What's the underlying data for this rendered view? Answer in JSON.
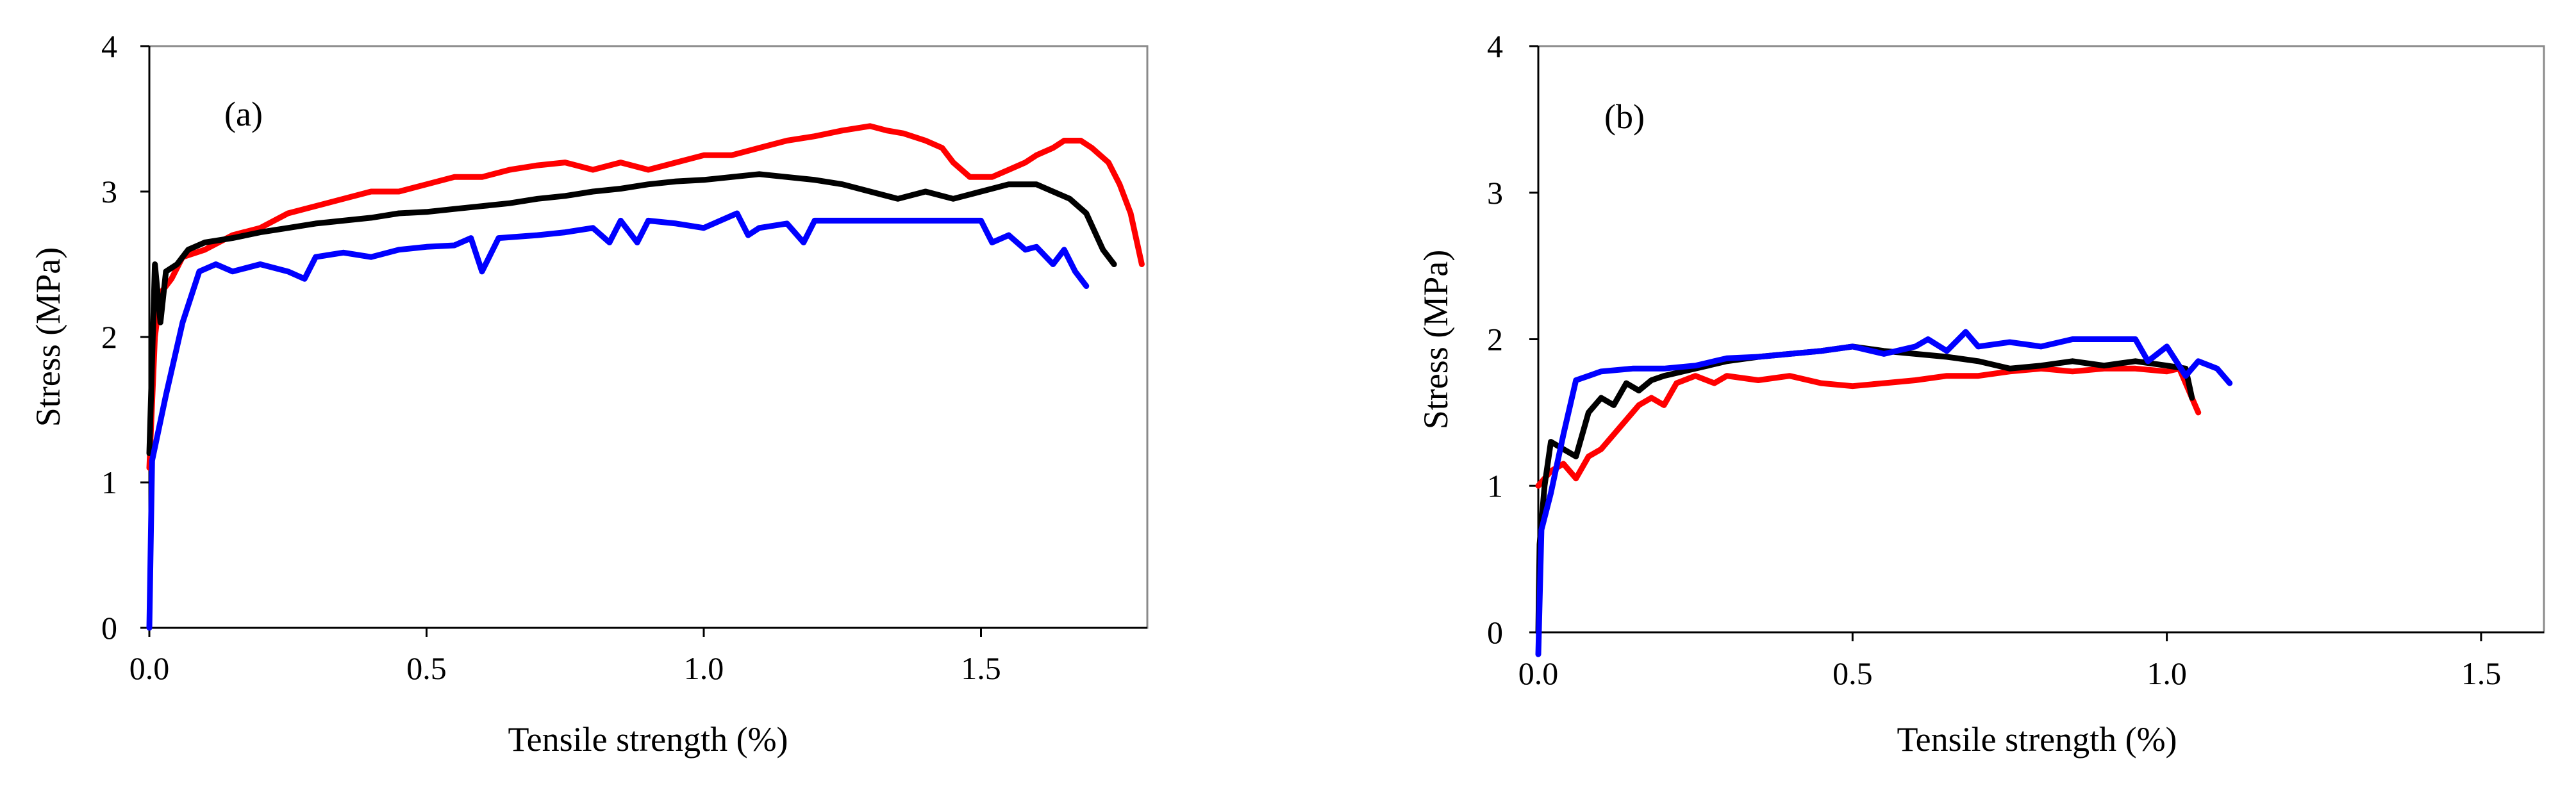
{
  "chart_data": [
    {
      "type": "line",
      "panel_label": "(a)",
      "xlabel": "Tensile strength (%)",
      "ylabel": "Stress (MPa)",
      "xlim": [
        0,
        1.8
      ],
      "ylim": [
        0,
        4
      ],
      "x_ticks": [
        0,
        0.5,
        1.0,
        1.5
      ],
      "x_tick_labels": [
        "0.0",
        "0.5",
        "1.0",
        "1.5"
      ],
      "y_ticks": [
        0,
        1,
        2,
        3,
        4
      ],
      "y_tick_labels": [
        "0",
        "1",
        "2",
        "3",
        "4"
      ],
      "series": [
        {
          "name": "red",
          "color": "#ff0000",
          "points": [
            [
              0,
              1.1
            ],
            [
              0.01,
              2.0
            ],
            [
              0.02,
              2.3
            ],
            [
              0.04,
              2.4
            ],
            [
              0.06,
              2.55
            ],
            [
              0.1,
              2.6
            ],
            [
              0.15,
              2.7
            ],
            [
              0.2,
              2.75
            ],
            [
              0.25,
              2.85
            ],
            [
              0.3,
              2.9
            ],
            [
              0.35,
              2.95
            ],
            [
              0.4,
              3.0
            ],
            [
              0.45,
              3.0
            ],
            [
              0.5,
              3.05
            ],
            [
              0.55,
              3.1
            ],
            [
              0.6,
              3.1
            ],
            [
              0.65,
              3.15
            ],
            [
              0.7,
              3.18
            ],
            [
              0.75,
              3.2
            ],
            [
              0.8,
              3.15
            ],
            [
              0.85,
              3.2
            ],
            [
              0.9,
              3.15
            ],
            [
              0.95,
              3.2
            ],
            [
              1.0,
              3.25
            ],
            [
              1.05,
              3.25
            ],
            [
              1.1,
              3.3
            ],
            [
              1.15,
              3.35
            ],
            [
              1.2,
              3.38
            ],
            [
              1.25,
              3.42
            ],
            [
              1.3,
              3.45
            ],
            [
              1.33,
              3.42
            ],
            [
              1.36,
              3.4
            ],
            [
              1.4,
              3.35
            ],
            [
              1.43,
              3.3
            ],
            [
              1.45,
              3.2
            ],
            [
              1.48,
              3.1
            ],
            [
              1.52,
              3.1
            ],
            [
              1.55,
              3.15
            ],
            [
              1.58,
              3.2
            ],
            [
              1.6,
              3.25
            ],
            [
              1.63,
              3.3
            ],
            [
              1.65,
              3.35
            ],
            [
              1.68,
              3.35
            ],
            [
              1.7,
              3.3
            ],
            [
              1.73,
              3.2
            ],
            [
              1.75,
              3.05
            ],
            [
              1.77,
              2.85
            ],
            [
              1.79,
              2.5
            ]
          ]
        },
        {
          "name": "black",
          "color": "#000000",
          "points": [
            [
              0,
              1.2
            ],
            [
              0.01,
              2.5
            ],
            [
              0.02,
              2.1
            ],
            [
              0.03,
              2.45
            ],
            [
              0.05,
              2.5
            ],
            [
              0.07,
              2.6
            ],
            [
              0.1,
              2.65
            ],
            [
              0.15,
              2.68
            ],
            [
              0.2,
              2.72
            ],
            [
              0.25,
              2.75
            ],
            [
              0.3,
              2.78
            ],
            [
              0.35,
              2.8
            ],
            [
              0.4,
              2.82
            ],
            [
              0.45,
              2.85
            ],
            [
              0.5,
              2.86
            ],
            [
              0.55,
              2.88
            ],
            [
              0.6,
              2.9
            ],
            [
              0.65,
              2.92
            ],
            [
              0.7,
              2.95
            ],
            [
              0.75,
              2.97
            ],
            [
              0.8,
              3.0
            ],
            [
              0.85,
              3.02
            ],
            [
              0.9,
              3.05
            ],
            [
              0.95,
              3.07
            ],
            [
              1.0,
              3.08
            ],
            [
              1.05,
              3.1
            ],
            [
              1.1,
              3.12
            ],
            [
              1.15,
              3.1
            ],
            [
              1.2,
              3.08
            ],
            [
              1.25,
              3.05
            ],
            [
              1.3,
              3.0
            ],
            [
              1.35,
              2.95
            ],
            [
              1.4,
              3.0
            ],
            [
              1.45,
              2.95
            ],
            [
              1.5,
              3.0
            ],
            [
              1.55,
              3.05
            ],
            [
              1.6,
              3.05
            ],
            [
              1.63,
              3.0
            ],
            [
              1.66,
              2.95
            ],
            [
              1.69,
              2.85
            ],
            [
              1.72,
              2.6
            ],
            [
              1.74,
              2.5
            ]
          ]
        },
        {
          "name": "blue",
          "color": "#0000ff",
          "points": [
            [
              0,
              0
            ],
            [
              0.005,
              1.15
            ],
            [
              0.03,
              1.6
            ],
            [
              0.06,
              2.1
            ],
            [
              0.09,
              2.45
            ],
            [
              0.12,
              2.5
            ],
            [
              0.15,
              2.45
            ],
            [
              0.2,
              2.5
            ],
            [
              0.25,
              2.45
            ],
            [
              0.28,
              2.4
            ],
            [
              0.3,
              2.55
            ],
            [
              0.35,
              2.58
            ],
            [
              0.4,
              2.55
            ],
            [
              0.45,
              2.6
            ],
            [
              0.5,
              2.62
            ],
            [
              0.55,
              2.63
            ],
            [
              0.58,
              2.68
            ],
            [
              0.6,
              2.45
            ],
            [
              0.63,
              2.68
            ],
            [
              0.7,
              2.7
            ],
            [
              0.75,
              2.72
            ],
            [
              0.8,
              2.75
            ],
            [
              0.83,
              2.65
            ],
            [
              0.85,
              2.8
            ],
            [
              0.88,
              2.65
            ],
            [
              0.9,
              2.8
            ],
            [
              0.95,
              2.78
            ],
            [
              1.0,
              2.75
            ],
            [
              1.03,
              2.8
            ],
            [
              1.06,
              2.85
            ],
            [
              1.08,
              2.7
            ],
            [
              1.1,
              2.75
            ],
            [
              1.15,
              2.78
            ],
            [
              1.18,
              2.65
            ],
            [
              1.2,
              2.8
            ],
            [
              1.25,
              2.8
            ],
            [
              1.3,
              2.8
            ],
            [
              1.35,
              2.8
            ],
            [
              1.4,
              2.8
            ],
            [
              1.45,
              2.8
            ],
            [
              1.5,
              2.8
            ],
            [
              1.52,
              2.65
            ],
            [
              1.55,
              2.7
            ],
            [
              1.58,
              2.6
            ],
            [
              1.6,
              2.62
            ],
            [
              1.63,
              2.5
            ],
            [
              1.65,
              2.6
            ],
            [
              1.67,
              2.45
            ],
            [
              1.69,
              2.35
            ]
          ]
        }
      ]
    },
    {
      "type": "line",
      "panel_label": "(b)",
      "xlabel": "Tensile strength (%)",
      "ylabel": "Stress (MPa)",
      "xlim": [
        0,
        1.6
      ],
      "ylim": [
        0,
        4
      ],
      "x_ticks": [
        0,
        0.5,
        1.0,
        1.5
      ],
      "x_tick_labels": [
        "0.0",
        "0.5",
        "1.0",
        "1.5"
      ],
      "y_ticks": [
        0,
        1,
        2,
        3,
        4
      ],
      "y_tick_labels": [
        "0",
        "1",
        "2",
        "3",
        "4"
      ],
      "series": [
        {
          "name": "red",
          "color": "#ff0000",
          "points": [
            [
              0,
              1.0
            ],
            [
              0.02,
              1.1
            ],
            [
              0.04,
              1.15
            ],
            [
              0.06,
              1.05
            ],
            [
              0.08,
              1.2
            ],
            [
              0.1,
              1.25
            ],
            [
              0.12,
              1.35
            ],
            [
              0.14,
              1.45
            ],
            [
              0.16,
              1.55
            ],
            [
              0.18,
              1.6
            ],
            [
              0.2,
              1.55
            ],
            [
              0.22,
              1.7
            ],
            [
              0.25,
              1.75
            ],
            [
              0.28,
              1.7
            ],
            [
              0.3,
              1.75
            ],
            [
              0.35,
              1.72
            ],
            [
              0.4,
              1.75
            ],
            [
              0.45,
              1.7
            ],
            [
              0.5,
              1.68
            ],
            [
              0.55,
              1.7
            ],
            [
              0.6,
              1.72
            ],
            [
              0.65,
              1.75
            ],
            [
              0.7,
              1.75
            ],
            [
              0.75,
              1.78
            ],
            [
              0.8,
              1.8
            ],
            [
              0.85,
              1.78
            ],
            [
              0.9,
              1.8
            ],
            [
              0.95,
              1.8
            ],
            [
              1.0,
              1.78
            ],
            [
              1.02,
              1.8
            ],
            [
              1.04,
              1.6
            ],
            [
              1.05,
              1.5
            ]
          ]
        },
        {
          "name": "black",
          "color": "#000000",
          "points": [
            [
              0,
              0
            ],
            [
              0.002,
              0.6
            ],
            [
              0.01,
              1.0
            ],
            [
              0.02,
              1.3
            ],
            [
              0.04,
              1.25
            ],
            [
              0.06,
              1.2
            ],
            [
              0.08,
              1.5
            ],
            [
              0.1,
              1.6
            ],
            [
              0.12,
              1.55
            ],
            [
              0.14,
              1.7
            ],
            [
              0.16,
              1.65
            ],
            [
              0.18,
              1.72
            ],
            [
              0.2,
              1.75
            ],
            [
              0.25,
              1.8
            ],
            [
              0.3,
              1.85
            ],
            [
              0.35,
              1.88
            ],
            [
              0.4,
              1.9
            ],
            [
              0.45,
              1.92
            ],
            [
              0.5,
              1.95
            ],
            [
              0.55,
              1.92
            ],
            [
              0.6,
              1.9
            ],
            [
              0.65,
              1.88
            ],
            [
              0.7,
              1.85
            ],
            [
              0.75,
              1.8
            ],
            [
              0.8,
              1.82
            ],
            [
              0.85,
              1.85
            ],
            [
              0.9,
              1.82
            ],
            [
              0.95,
              1.85
            ],
            [
              1.0,
              1.82
            ],
            [
              1.03,
              1.8
            ],
            [
              1.04,
              1.6
            ]
          ]
        },
        {
          "name": "blue",
          "color": "#0000ff",
          "points": [
            [
              0,
              -0.15
            ],
            [
              0.005,
              0.7
            ],
            [
              0.02,
              0.95
            ],
            [
              0.04,
              1.35
            ],
            [
              0.06,
              1.72
            ],
            [
              0.08,
              1.75
            ],
            [
              0.1,
              1.78
            ],
            [
              0.15,
              1.8
            ],
            [
              0.2,
              1.8
            ],
            [
              0.25,
              1.82
            ],
            [
              0.28,
              1.85
            ],
            [
              0.3,
              1.87
            ],
            [
              0.35,
              1.88
            ],
            [
              0.4,
              1.9
            ],
            [
              0.45,
              1.92
            ],
            [
              0.5,
              1.95
            ],
            [
              0.55,
              1.9
            ],
            [
              0.6,
              1.95
            ],
            [
              0.62,
              2.0
            ],
            [
              0.65,
              1.92
            ],
            [
              0.68,
              2.05
            ],
            [
              0.7,
              1.95
            ],
            [
              0.75,
              1.98
            ],
            [
              0.8,
              1.95
            ],
            [
              0.85,
              2.0
            ],
            [
              0.9,
              2.0
            ],
            [
              0.95,
              2.0
            ],
            [
              0.97,
              1.85
            ],
            [
              1.0,
              1.95
            ],
            [
              1.03,
              1.75
            ],
            [
              1.05,
              1.85
            ],
            [
              1.08,
              1.8
            ],
            [
              1.1,
              1.7
            ]
          ]
        }
      ]
    }
  ]
}
